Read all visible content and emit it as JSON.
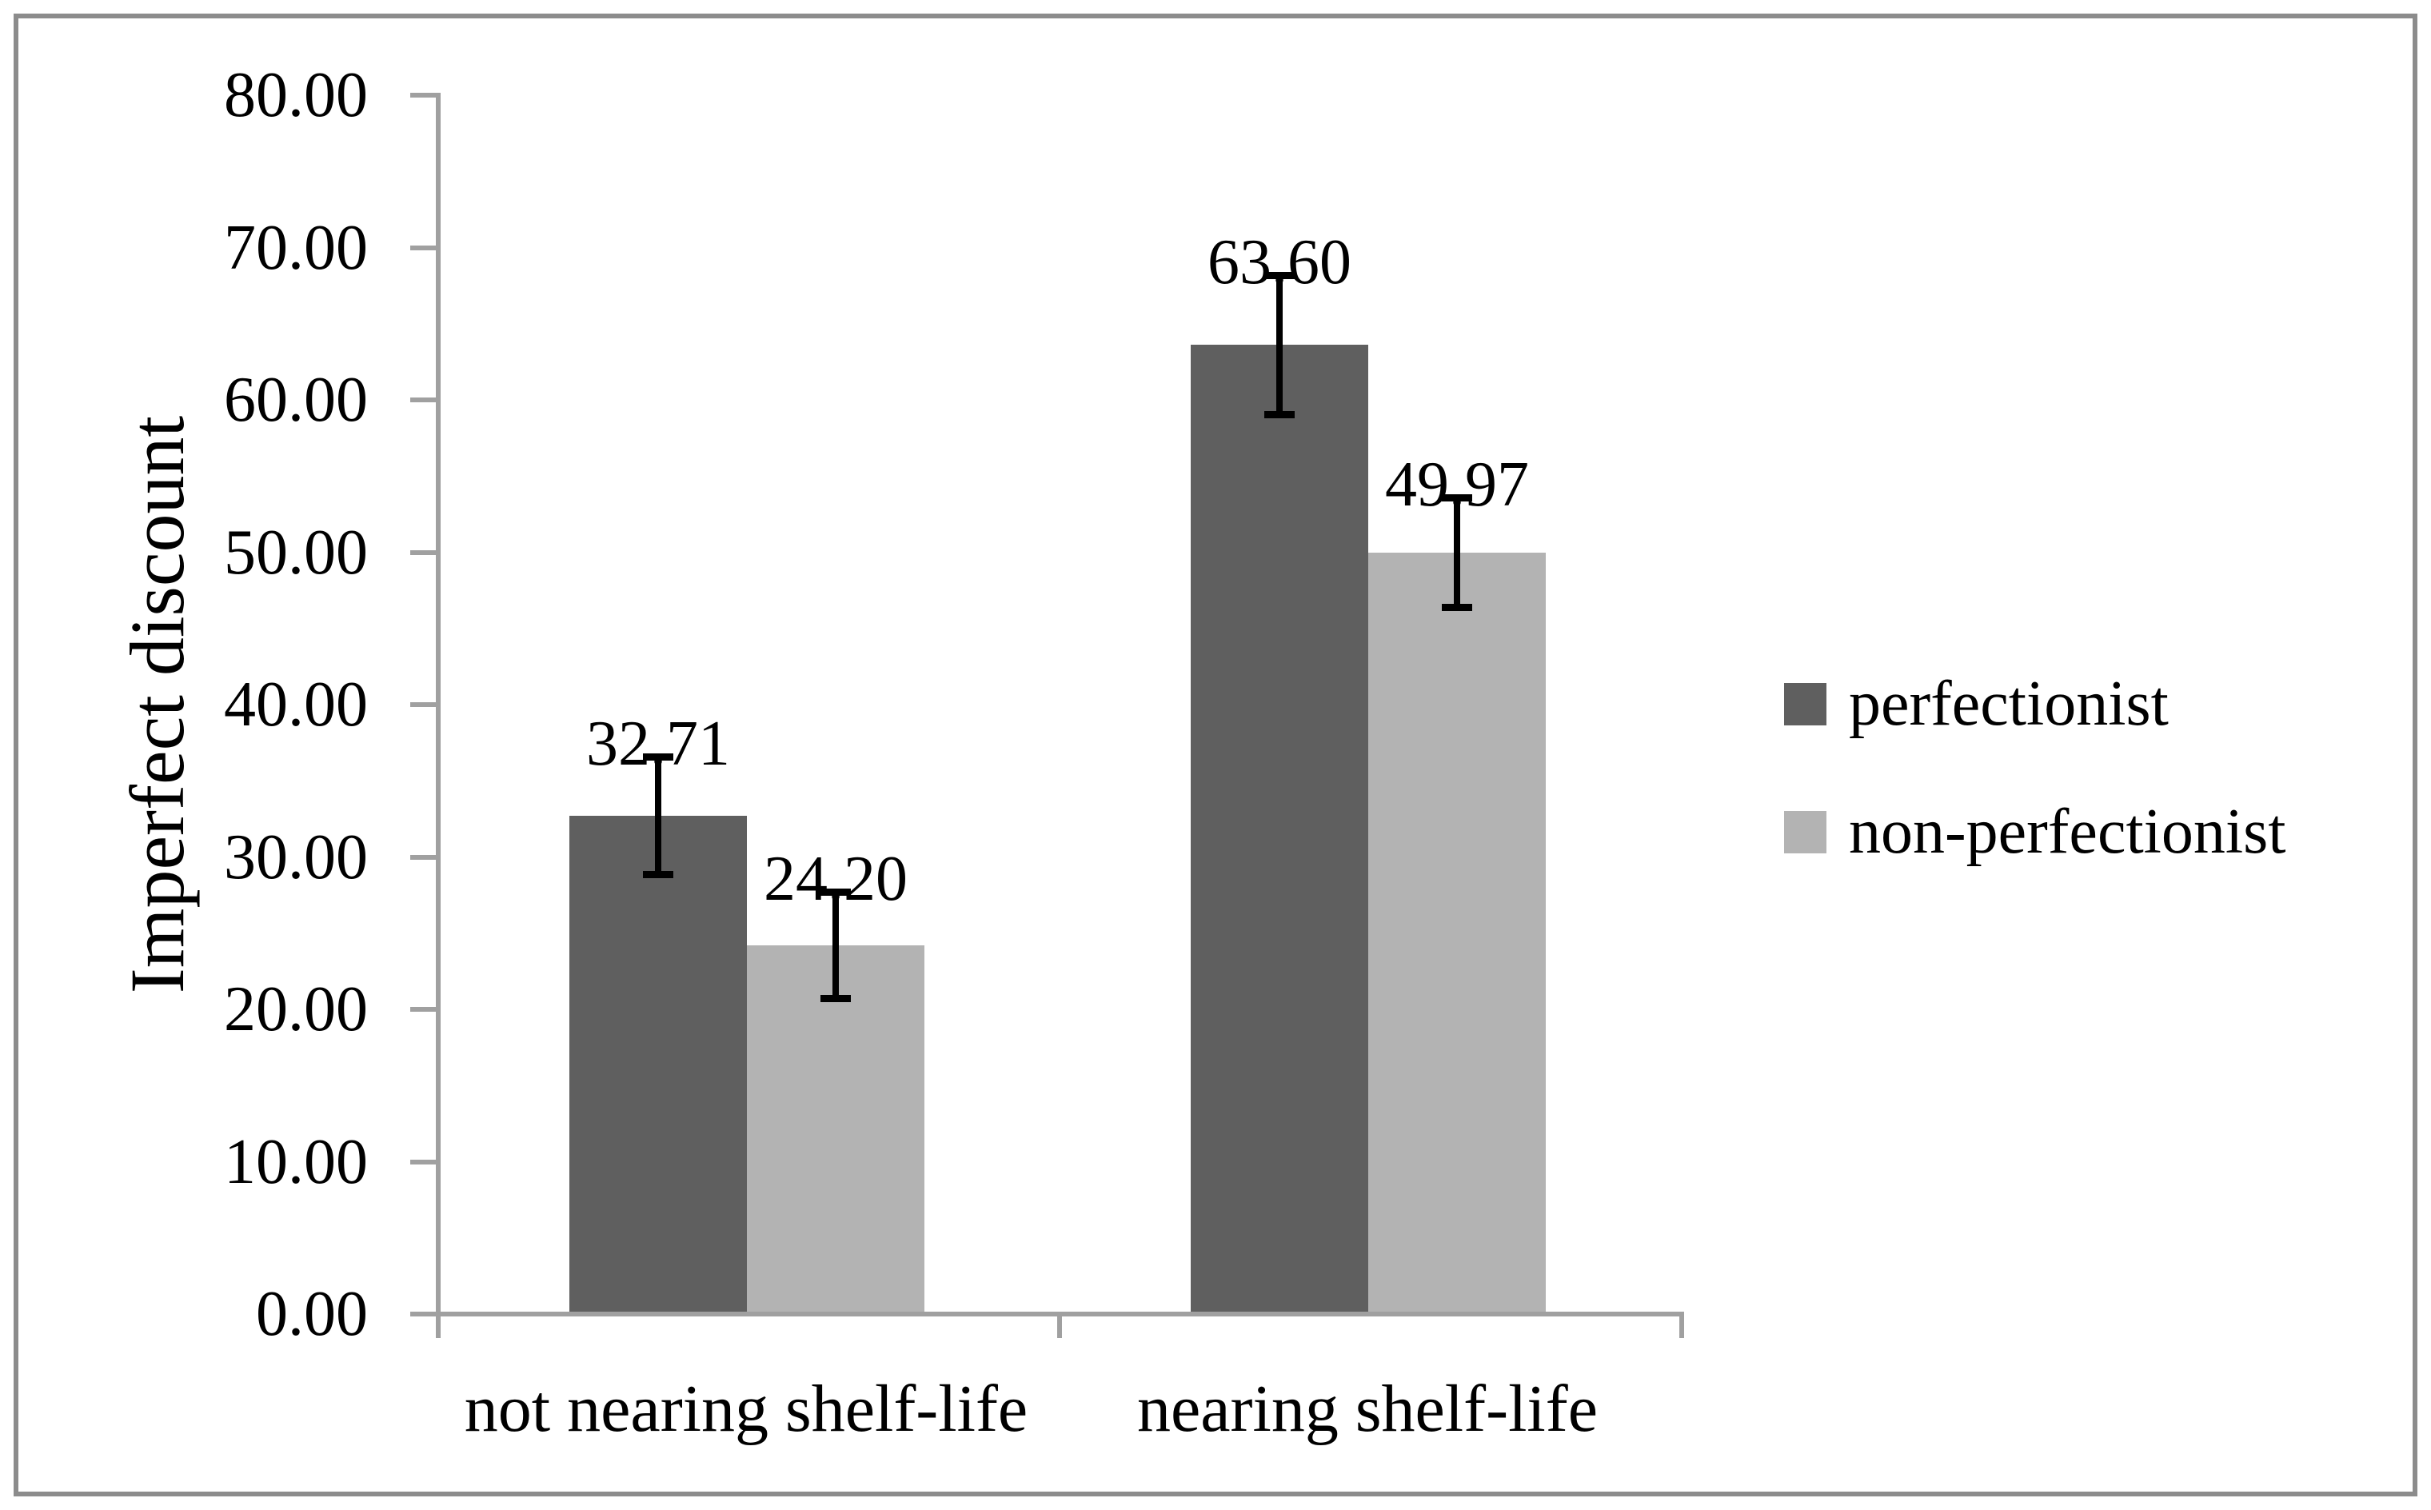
{
  "figure": {
    "background": "#ffffff",
    "border_color": "#8c8c8c",
    "axis_color": "#a0a0a0",
    "text_color": "#000000"
  },
  "chart_data": {
    "type": "bar",
    "title": "",
    "xlabel": "",
    "ylabel": "Imperfect discount",
    "categories": [
      "not nearing shelf-life",
      "nearing shelf-life"
    ],
    "series": [
      {
        "name": "perfectionist",
        "color": "#5f5f5f",
        "values": [
          32.71,
          63.6
        ],
        "value_labels": [
          "32.71",
          "63.60"
        ],
        "error_bars": [
          3.9,
          4.6
        ]
      },
      {
        "name": "non-perfectionist",
        "color": "#b3b3b3",
        "values": [
          24.2,
          49.97
        ],
        "value_labels": [
          "24.20",
          "49.97"
        ],
        "error_bars": [
          3.5,
          3.6
        ]
      }
    ],
    "ylim": [
      0,
      80
    ],
    "ytick_step": 10,
    "ytick_labels": [
      "0.00",
      "10.00",
      "20.00",
      "30.00",
      "40.00",
      "50.00",
      "60.00",
      "70.00",
      "80.00"
    ],
    "grid": false,
    "legend_position": "right-middle",
    "error_bars_shown": true
  }
}
